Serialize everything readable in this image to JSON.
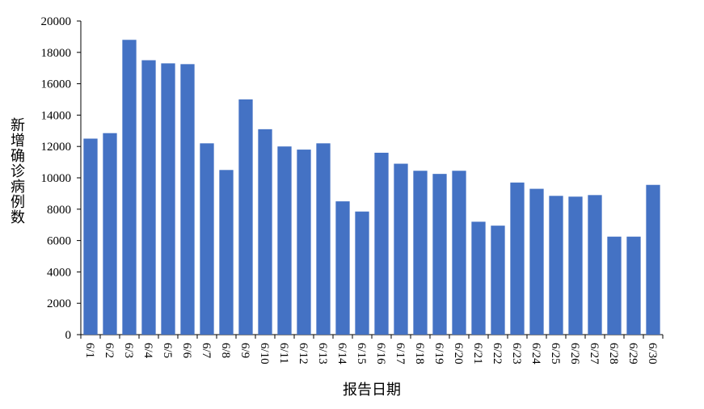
{
  "chart_data": {
    "type": "bar",
    "y_axis_label": "新增确诊病例数",
    "x_axis_label": "报告日期",
    "categories": [
      "6/1",
      "6/2",
      "6/3",
      "6/4",
      "6/5",
      "6/6",
      "6/7",
      "6/8",
      "6/9",
      "6/10",
      "6/11",
      "6/12",
      "6/13",
      "6/14",
      "6/15",
      "6/16",
      "6/17",
      "6/18",
      "6/19",
      "6/20",
      "6/21",
      "6/22",
      "6/23",
      "6/24",
      "6/25",
      "6/26",
      "6/27",
      "6/28",
      "6/29",
      "6/30"
    ],
    "values": [
      12500,
      12850,
      18800,
      17500,
      17300,
      17250,
      12200,
      10500,
      15000,
      13100,
      12000,
      11800,
      12200,
      8500,
      7850,
      11600,
      10900,
      10450,
      10250,
      10450,
      7200,
      6950,
      9700,
      9300,
      8850,
      8800,
      8900,
      6250,
      6250,
      9550
    ],
    "color": "#4472c4",
    "ylim": [
      0,
      20000
    ],
    "yticks": [
      0,
      2000,
      4000,
      6000,
      8000,
      10000,
      12000,
      14000,
      16000,
      18000,
      20000
    ],
    "grid": false
  }
}
